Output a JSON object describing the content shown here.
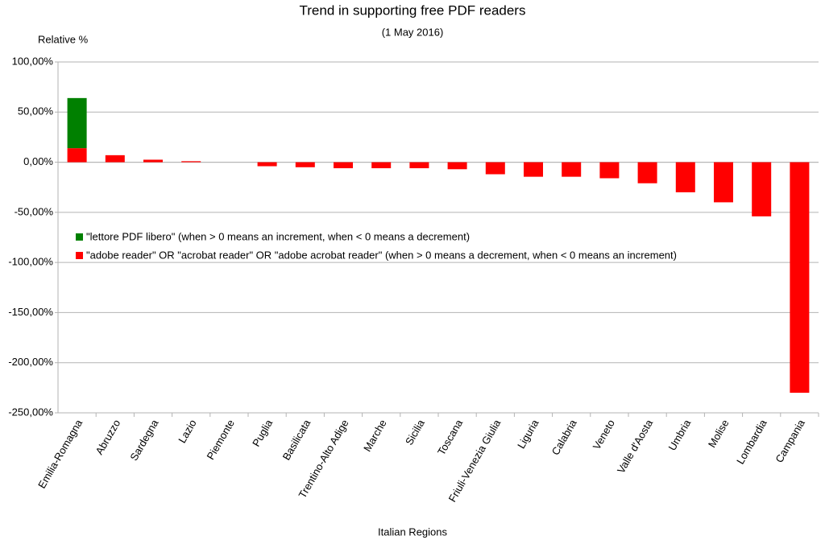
{
  "chart_data": {
    "type": "stacked_bar",
    "title": "Trend in supporting free PDF readers",
    "subtitle": "(1 May 2016)",
    "y_label": "Relative %",
    "x_label": "Italian Regions",
    "categories": [
      "Emilia-Romagna",
      "Abruzzo",
      "Sardegna",
      "Lazio",
      "Piemonte",
      "Puglia",
      "Basilicata",
      "Trentino-Alto Adige",
      "Marche",
      "Sicilia",
      "Toscana",
      "Friuli-Venezia Giulia",
      "Liguria",
      "Calabria",
      "Veneto",
      "Valle d'Aosta",
      "Umbria",
      "Molise",
      "Lombardia",
      "Campania"
    ],
    "series": [
      {
        "name": "\"lettore PDF libero\" (when > 0 means an increment, when < 0 means a decrement)",
        "color": "#008000",
        "values": [
          50,
          0,
          0,
          0,
          0,
          0,
          0,
          0,
          0,
          0,
          0,
          0,
          0,
          0,
          0,
          0,
          0,
          0,
          0,
          0
        ]
      },
      {
        "name": "\"adobe reader\" OR \"acrobat reader\" OR \"adobe acrobat reader\" (when > 0 means a decrement, when < 0 means an increment)",
        "color": "#ff0000",
        "values": [
          14,
          7,
          2.5,
          1,
          0,
          -4,
          -5,
          -6,
          -6,
          -6,
          -7,
          -12,
          -14.5,
          -14.5,
          -16,
          -21,
          -30,
          -40,
          -54,
          -230
        ]
      }
    ],
    "ylim": [
      -250,
      100
    ],
    "yticks": [
      {
        "value": -250,
        "label": "-250,00%"
      },
      {
        "value": -200,
        "label": "-200,00%"
      },
      {
        "value": -150,
        "label": "-150,00%"
      },
      {
        "value": -100,
        "label": "-100,00%"
      },
      {
        "value": -50,
        "label": "-50,00%"
      },
      {
        "value": 0,
        "label": "0,00%"
      },
      {
        "value": 50,
        "label": "50,00%"
      },
      {
        "value": 100,
        "label": "100,00%"
      }
    ],
    "grid": true,
    "legend": "center-left"
  }
}
